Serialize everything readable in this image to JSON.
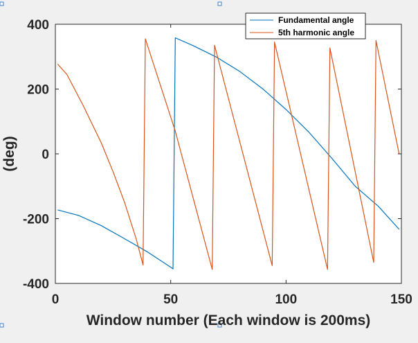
{
  "chart_data": {
    "type": "line",
    "xlabel": "Window number (Each window is 200ms)",
    "ylabel": "(deg)",
    "xlim": [
      0,
      150
    ],
    "ylim": [
      -400,
      400
    ],
    "xticks": [
      "0",
      "50",
      "100",
      "150"
    ],
    "yticks": [
      "-400",
      "-200",
      "0",
      "200",
      "400"
    ],
    "grid": false,
    "legend_position": "top-right",
    "series": [
      {
        "name": "Fundamental angle",
        "color": "#0072BD",
        "points": [
          [
            1,
            -173
          ],
          [
            10,
            -190
          ],
          [
            20,
            -222
          ],
          [
            30,
            -262
          ],
          [
            40,
            -303
          ],
          [
            50,
            -350
          ],
          [
            51,
            -355
          ],
          [
            52,
            358
          ],
          [
            60,
            333
          ],
          [
            70,
            298
          ],
          [
            80,
            254
          ],
          [
            90,
            200
          ],
          [
            100,
            137
          ],
          [
            110,
            66
          ],
          [
            120,
            -15
          ],
          [
            130,
            -100
          ],
          [
            140,
            -162
          ],
          [
            149,
            -233
          ]
        ]
      },
      {
        "name": "5th harmonic angle",
        "color": "#D95319",
        "points": [
          [
            1,
            277
          ],
          [
            5,
            245
          ],
          [
            12,
            150
          ],
          [
            20,
            32
          ],
          [
            25,
            -55
          ],
          [
            30,
            -150
          ],
          [
            35,
            -262
          ],
          [
            38,
            -343
          ],
          [
            39,
            355
          ],
          [
            52,
            70
          ],
          [
            68,
            -357
          ],
          [
            69,
            335
          ],
          [
            94,
            -345
          ],
          [
            95,
            345
          ],
          [
            118,
            -357
          ],
          [
            119,
            327
          ],
          [
            138,
            -335
          ],
          [
            139,
            350
          ],
          [
            149,
            0
          ]
        ]
      }
    ]
  }
}
